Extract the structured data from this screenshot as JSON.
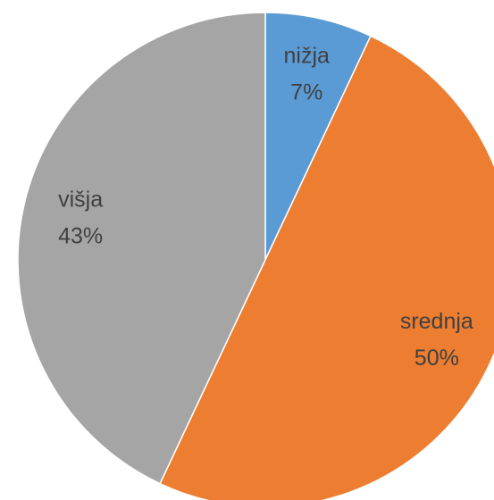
{
  "chart_data": {
    "type": "pie",
    "categories": [
      "nižja",
      "srednja",
      "višja"
    ],
    "values": [
      7,
      50,
      43
    ],
    "value_labels": [
      "7%",
      "50%",
      "43%"
    ],
    "colors": [
      "#5b9bd5",
      "#ed7d31",
      "#a5a5a5"
    ]
  }
}
